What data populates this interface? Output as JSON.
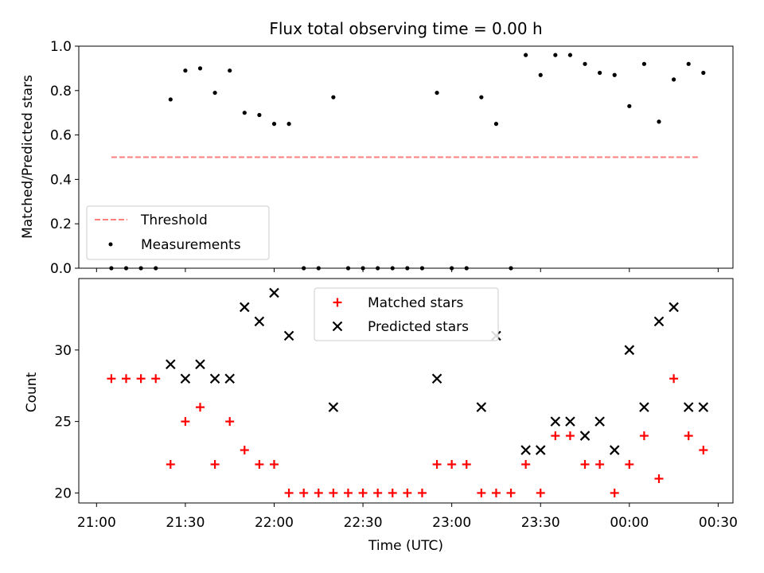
{
  "figure": {
    "title": "Flux total observing time = 0.00 h",
    "xlabel": "Time (UTC)"
  },
  "chart_data": [
    {
      "type": "scatter",
      "panel": "top",
      "ylabel": "Matched/Predicted stars",
      "ylim": [
        0.0,
        1.0
      ],
      "yticks": [
        0.0,
        0.2,
        0.4,
        0.6,
        0.8,
        1.0
      ],
      "ytick_labels": [
        "0.0",
        "0.2",
        "0.4",
        "0.6",
        "0.8",
        "1.0"
      ],
      "legend_position": "lower-left",
      "series": [
        {
          "name": "Threshold",
          "kind": "dashed-line",
          "color": "#ff7f7f",
          "x": [
            "21:05",
            "23:59",
            "00:24"
          ],
          "y": [
            0.5,
            0.5,
            0.5
          ]
        },
        {
          "name": "Measurements",
          "kind": "points",
          "color": "#000000",
          "x": [
            "21:05",
            "21:10",
            "21:15",
            "21:20",
            "21:25",
            "21:30",
            "21:35",
            "21:40",
            "21:45",
            "21:50",
            "21:55",
            "22:00",
            "22:05",
            "22:10",
            "22:15",
            "22:20",
            "22:25",
            "22:30",
            "22:35",
            "22:40",
            "22:45",
            "22:50",
            "22:55",
            "23:00",
            "23:05",
            "23:10",
            "23:15",
            "23:20",
            "23:25",
            "23:30",
            "23:35",
            "23:40",
            "23:45",
            "23:50",
            "23:55",
            "00:00",
            "00:05",
            "00:10",
            "00:15",
            "00:20",
            "00:25"
          ],
          "y": [
            0.0,
            0.0,
            0.0,
            0.0,
            0.76,
            0.89,
            0.9,
            0.79,
            0.89,
            0.7,
            0.69,
            0.65,
            0.65,
            0.0,
            0.0,
            0.77,
            0.0,
            0.0,
            0.0,
            0.0,
            0.0,
            0.0,
            0.79,
            0.0,
            0.0,
            0.77,
            0.65,
            0.0,
            0.96,
            0.87,
            0.96,
            0.96,
            0.92,
            0.88,
            0.87,
            0.73,
            0.92,
            0.66,
            0.85,
            0.92,
            0.88
          ]
        }
      ]
    },
    {
      "type": "scatter",
      "panel": "bottom",
      "ylabel": "Count",
      "ylim": [
        19.3,
        35.0
      ],
      "yticks": [
        20,
        25,
        30
      ],
      "ytick_labels": [
        "20",
        "25",
        "30"
      ],
      "xlim": [
        "20:54",
        "00:35"
      ],
      "xticks": [
        "21:00",
        "21:30",
        "22:00",
        "22:30",
        "23:00",
        "23:30",
        "00:00",
        "00:30"
      ],
      "xtick_labels": [
        "21:00",
        "21:30",
        "22:00",
        "22:30",
        "23:00",
        "23:30",
        "00:00",
        "00:30"
      ],
      "legend_position": "upper-center",
      "series": [
        {
          "name": "Matched stars",
          "marker": "plus",
          "color": "#ff0000",
          "x": [
            "21:05",
            "21:10",
            "21:15",
            "21:20",
            "21:25",
            "21:30",
            "21:35",
            "21:40",
            "21:45",
            "21:50",
            "21:55",
            "22:00",
            "22:05",
            "22:10",
            "22:15",
            "22:20",
            "22:25",
            "22:30",
            "22:35",
            "22:40",
            "22:45",
            "22:50",
            "22:55",
            "23:00",
            "23:05",
            "23:10",
            "23:15",
            "23:20",
            "23:25",
            "23:30",
            "23:35",
            "23:40",
            "23:45",
            "23:50",
            "23:55",
            "00:00",
            "00:05",
            "00:10",
            "00:15",
            "00:20",
            "00:25"
          ],
          "y": [
            28,
            28,
            28,
            28,
            22,
            25,
            26,
            22,
            25,
            23,
            22,
            22,
            20,
            20,
            20,
            20,
            20,
            20,
            20,
            20,
            20,
            20,
            22,
            22,
            22,
            20,
            20,
            20,
            22,
            20,
            24,
            24,
            22,
            22,
            20,
            22,
            24,
            21,
            28,
            24,
            23
          ]
        },
        {
          "name": "Predicted stars",
          "marker": "x",
          "color": "#000000",
          "x": [
            "21:25",
            "21:30",
            "21:35",
            "21:40",
            "21:45",
            "21:50",
            "21:55",
            "22:00",
            "22:05",
            "22:20",
            "22:55",
            "23:10",
            "23:15",
            "23:25",
            "23:30",
            "23:35",
            "23:40",
            "23:45",
            "23:50",
            "23:55",
            "00:00",
            "00:05",
            "00:10",
            "00:15",
            "00:20",
            "00:25"
          ],
          "y": [
            29,
            28,
            29,
            28,
            28,
            33,
            32,
            34,
            31,
            26,
            28,
            26,
            31,
            23,
            23,
            25,
            25,
            24,
            25,
            23,
            30,
            26,
            32,
            33,
            26,
            26
          ]
        }
      ]
    }
  ]
}
